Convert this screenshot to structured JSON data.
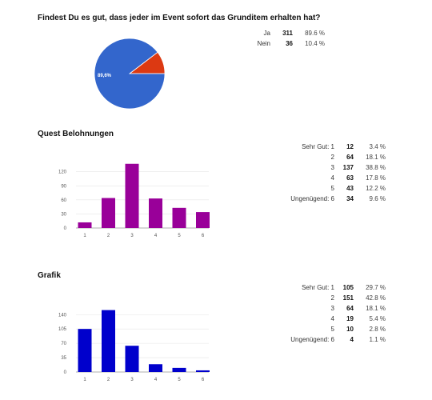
{
  "q1": {
    "title": "Findest Du es gut, dass jeder im Event sofort das Grunditem erhalten hat?",
    "rows": [
      {
        "label": "Ja",
        "count": "311",
        "pct": "89.6 %"
      },
      {
        "label": "Nein",
        "count": "36",
        "pct": "10.4 %"
      }
    ]
  },
  "q2": {
    "title": "Quest Belohnungen",
    "rows": [
      {
        "label": "Sehr Gut: 1",
        "count": "12",
        "pct": "3.4 %"
      },
      {
        "label": "2",
        "count": "64",
        "pct": "18.1 %"
      },
      {
        "label": "3",
        "count": "137",
        "pct": "38.8 %"
      },
      {
        "label": "4",
        "count": "63",
        "pct": "17.8 %"
      },
      {
        "label": "5",
        "count": "43",
        "pct": "12.2 %"
      },
      {
        "label": "Ungenügend: 6",
        "count": "34",
        "pct": "9.6 %"
      }
    ]
  },
  "q3": {
    "title": "Grafik",
    "rows": [
      {
        "label": "Sehr Gut: 1",
        "count": "105",
        "pct": "29.7 %"
      },
      {
        "label": "2",
        "count": "151",
        "pct": "42.8 %"
      },
      {
        "label": "3",
        "count": "64",
        "pct": "18.1 %"
      },
      {
        "label": "4",
        "count": "19",
        "pct": "5.4 %"
      },
      {
        "label": "5",
        "count": "10",
        "pct": "2.8 %"
      },
      {
        "label": "Ungenügend: 6",
        "count": "4",
        "pct": "1.1 %"
      }
    ]
  },
  "chart_data": [
    {
      "type": "pie",
      "categories": [
        "Ja",
        "Nein"
      ],
      "values": [
        311,
        36
      ],
      "colors": [
        "#3366cc",
        "#dc3912"
      ],
      "slice_labels": [
        "89,6%",
        ""
      ]
    },
    {
      "type": "bar",
      "categories": [
        "1",
        "2",
        "3",
        "4",
        "5",
        "6"
      ],
      "values": [
        12,
        64,
        137,
        63,
        43,
        34
      ],
      "ylim": [
        0,
        140
      ],
      "yticks": [
        "0",
        "30",
        "60",
        "90",
        "120"
      ],
      "color": "#990099"
    },
    {
      "type": "bar",
      "categories": [
        "1",
        "2",
        "3",
        "4",
        "5",
        "6"
      ],
      "values": [
        105,
        151,
        64,
        19,
        10,
        4
      ],
      "ylim": [
        0,
        160
      ],
      "yticks": [
        "0",
        "35",
        "70",
        "105",
        "140"
      ],
      "color": "#0000cc"
    }
  ]
}
